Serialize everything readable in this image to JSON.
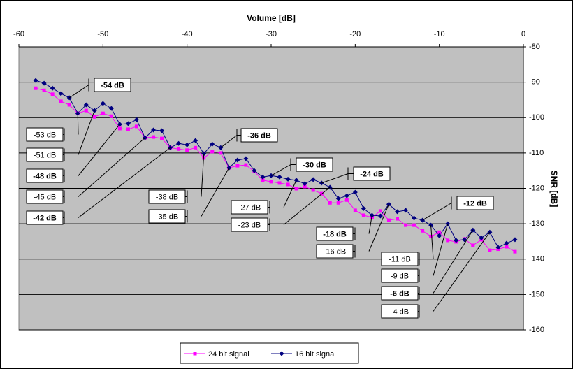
{
  "chart_data": {
    "type": "line",
    "xlabel": "Volume [dB]",
    "ylabel": "SNR [dB]",
    "x": [
      -58,
      -57,
      -56,
      -55,
      -54,
      -53,
      -52,
      -51,
      -50,
      -49,
      -48,
      -47,
      -46,
      -45,
      -44,
      -43,
      -42,
      -41,
      -40,
      -39,
      -38,
      -37,
      -36,
      -35,
      -34,
      -33,
      -32,
      -31,
      -30,
      -29,
      -28,
      -27,
      -26,
      -25,
      -24,
      -23,
      -22,
      -21,
      -20,
      -19,
      -18,
      -17,
      -16,
      -15,
      -14,
      -13,
      -12,
      -11,
      -10,
      -9,
      -8,
      -7,
      -6,
      -5,
      -4,
      -3,
      -2,
      -1
    ],
    "series": [
      {
        "name": "24 bit signal",
        "color": "#ff00ff",
        "marker": "square",
        "values": [
          -91.7,
          -92.3,
          -93.4,
          -95.4,
          -96.4,
          -98.8,
          -98.0,
          -99.8,
          -98.8,
          -99.6,
          -103.1,
          -103.3,
          -102.5,
          -105.7,
          -105.5,
          -105.9,
          -108.5,
          -108.9,
          -109.2,
          -108.5,
          -111.4,
          -109.6,
          -110.0,
          -114.2,
          -113.6,
          -113.4,
          -115.2,
          -117.7,
          -118.1,
          -118.5,
          -118.9,
          -120.1,
          -119.5,
          -120.5,
          -121.5,
          -124.1,
          -124.1,
          -123.3,
          -126.2,
          -127.6,
          -128.2,
          -126.4,
          -129.0,
          -128.6,
          -130.4,
          -130.4,
          -132.0,
          -133.6,
          -132.4,
          -134.7,
          -135.1,
          -134.3,
          -136.1,
          -134.5,
          -137.5,
          -137.2,
          -136.5,
          -137.9
        ]
      },
      {
        "name": "16 bit signal",
        "color": "#000080",
        "marker": "diamond",
        "values": [
          -89.5,
          -90.3,
          -91.7,
          -93.2,
          -94.4,
          -98.8,
          -96.4,
          -98.0,
          -96.0,
          -97.4,
          -101.9,
          -101.7,
          -100.6,
          -105.7,
          -103.5,
          -103.7,
          -108.5,
          -107.3,
          -107.7,
          -106.5,
          -110.2,
          -107.5,
          -108.5,
          -114.2,
          -112.0,
          -111.6,
          -115.0,
          -116.8,
          -116.4,
          -116.8,
          -117.4,
          -117.7,
          -118.7,
          -117.5,
          -118.5,
          -119.7,
          -122.9,
          -122.1,
          -121.1,
          -125.7,
          -127.6,
          -127.8,
          -124.5,
          -126.6,
          -126.2,
          -128.4,
          -129.0,
          -130.4,
          -133.4,
          -130.0,
          -134.7,
          -134.5,
          -131.8,
          -134.0,
          -132.4,
          -136.7,
          -135.5,
          -134.5
        ]
      }
    ],
    "xlim": [
      -60,
      0
    ],
    "xticks": [
      -60,
      -50,
      -40,
      -30,
      -20,
      -10,
      0
    ],
    "ylim": [
      -160,
      -80
    ],
    "yticks": [
      -80,
      -90,
      -100,
      -110,
      -120,
      -130,
      -140,
      -150,
      -160
    ],
    "grid": true,
    "legend": "bottom",
    "annotations": [
      {
        "text": "-54 dB",
        "color": "#cc0000"
      },
      {
        "text": "-53 dB",
        "color": "#000000"
      },
      {
        "text": "-51 dB",
        "color": "#000000"
      },
      {
        "text": "-48 dB",
        "color": "#006600"
      },
      {
        "text": "-45 dB",
        "color": "#000000"
      },
      {
        "text": "-42 dB",
        "color": "#006600"
      },
      {
        "text": "-38 dB",
        "color": "#000000"
      },
      {
        "text": "-36 dB",
        "color": "#cc0000"
      },
      {
        "text": "-35 dB",
        "color": "#000000"
      },
      {
        "text": "-30 dB",
        "color": "#cc0000"
      },
      {
        "text": "-27 dB",
        "color": "#000000"
      },
      {
        "text": "-24 dB",
        "color": "#cc0000"
      },
      {
        "text": "-23 dB",
        "color": "#000000"
      },
      {
        "text": "-18 dB",
        "color": "#006600"
      },
      {
        "text": "-16 dB",
        "color": "#000000"
      },
      {
        "text": "-12 dB",
        "color": "#cc0000"
      },
      {
        "text": "-11 dB",
        "color": "#000000"
      },
      {
        "text": "-9 dB",
        "color": "#000000"
      },
      {
        "text": "-6 dB",
        "color": "#006600"
      },
      {
        "text": "-4 dB",
        "color": "#000000"
      }
    ]
  }
}
